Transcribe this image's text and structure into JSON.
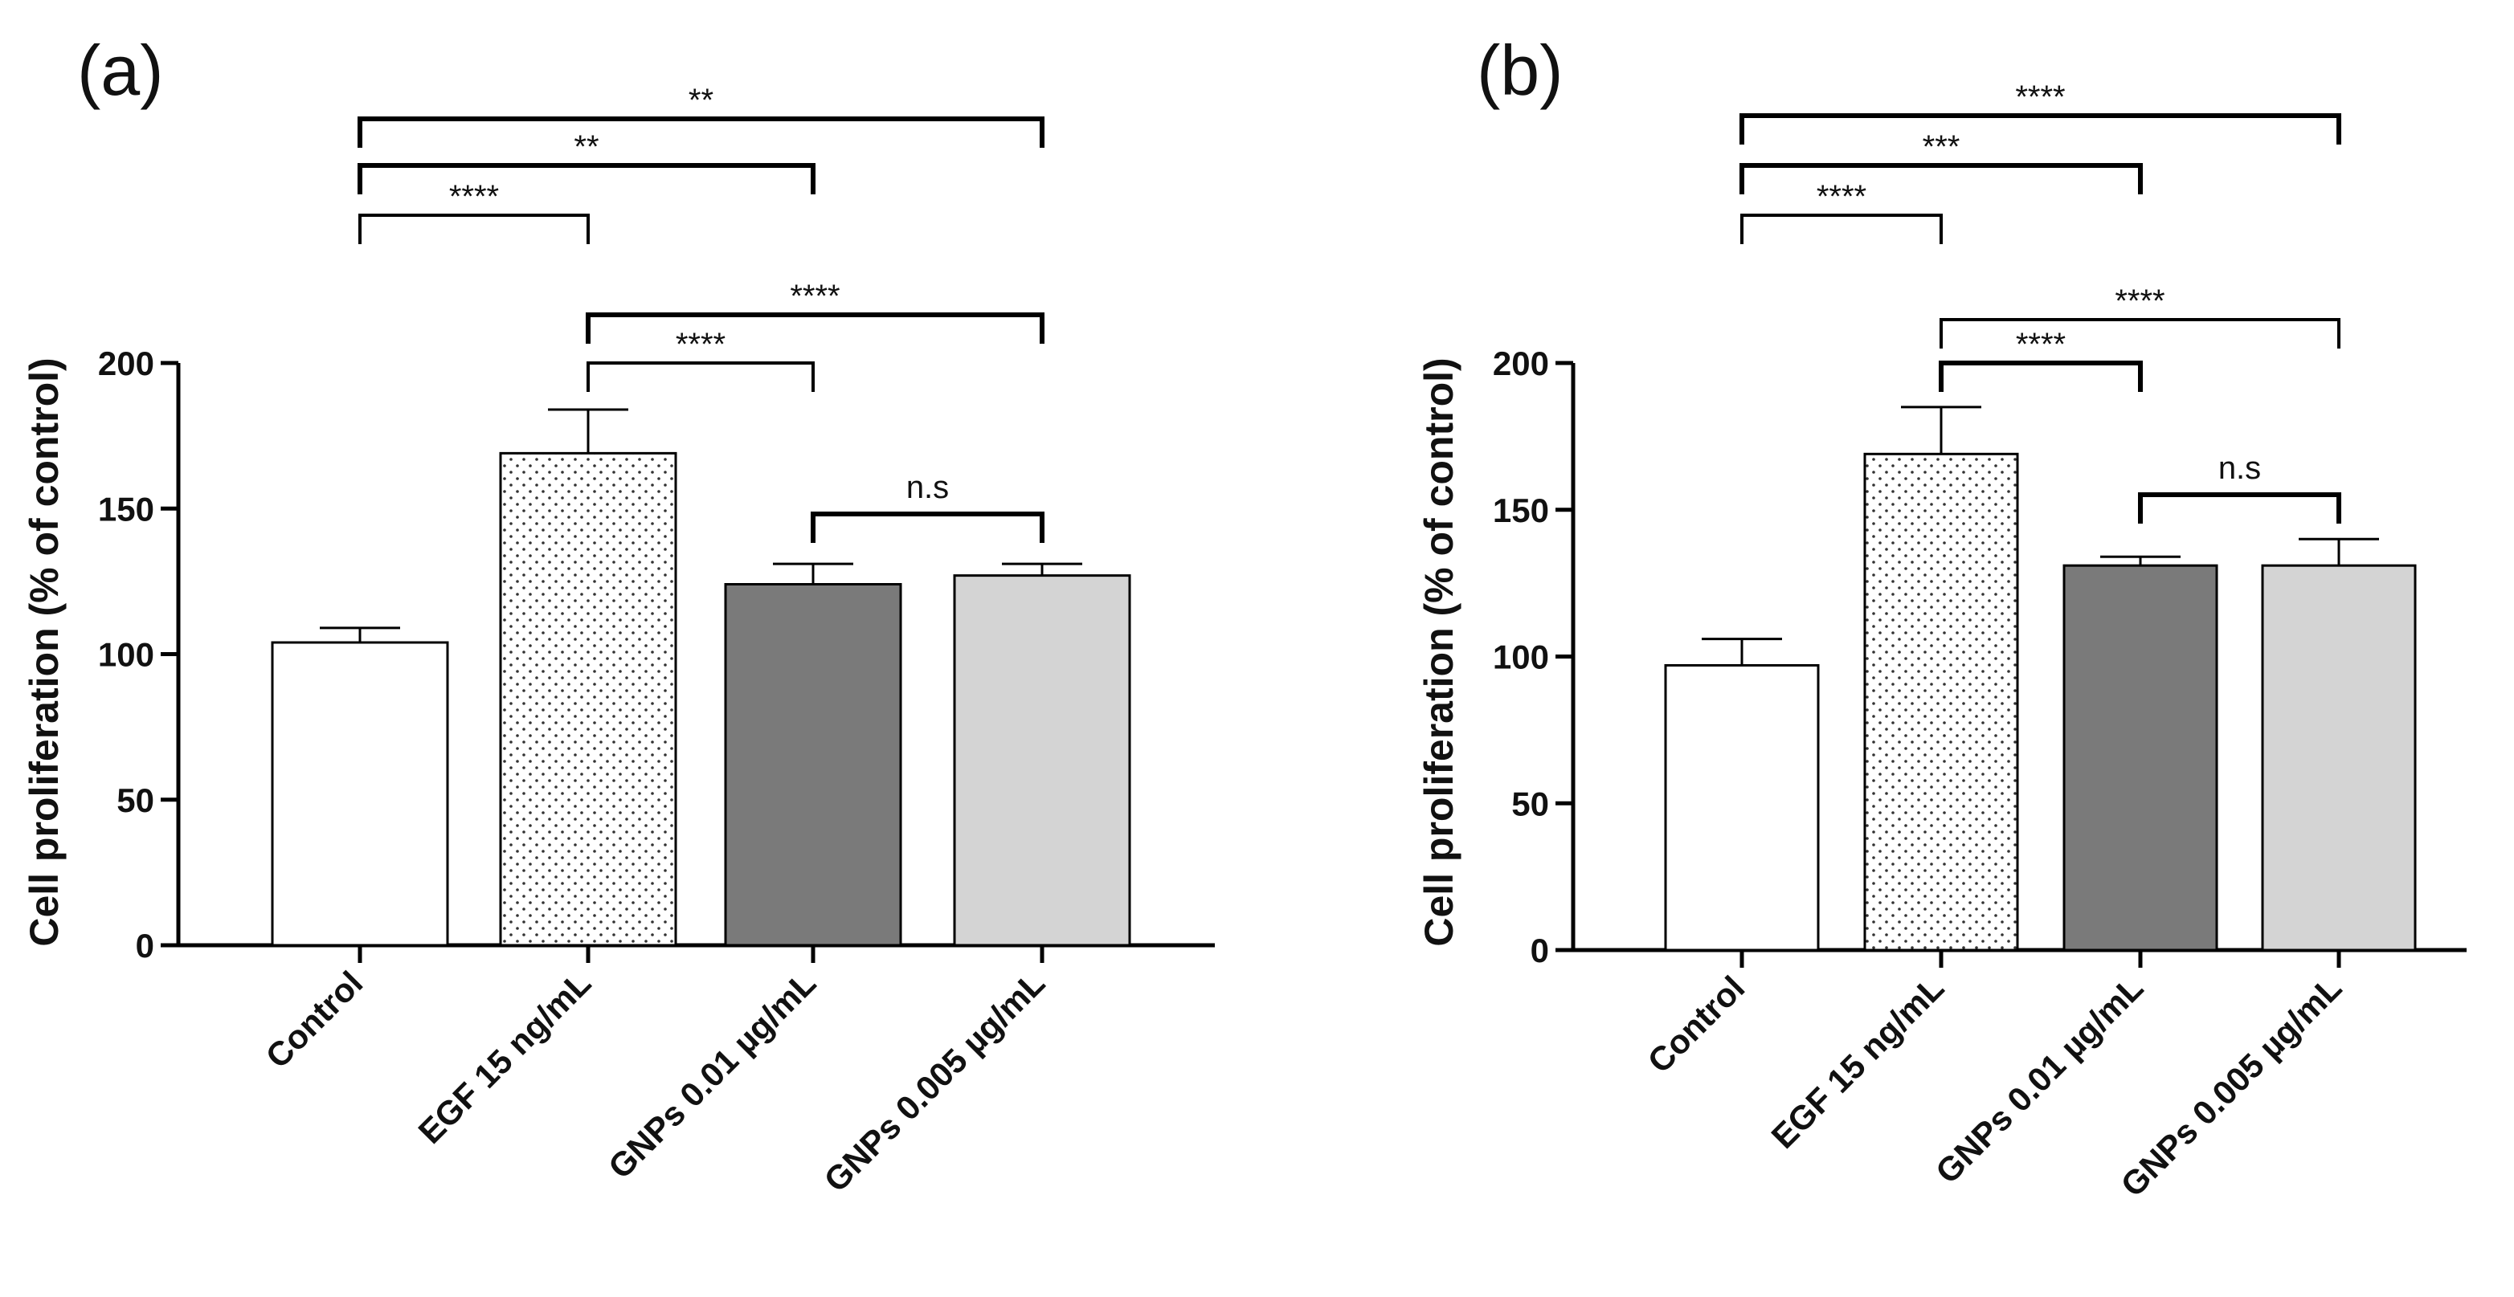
{
  "chart_data": [
    {
      "panel_label": "(a)",
      "type": "bar",
      "ylabel": "Cell proliferation (% of control)",
      "ylim": [
        0,
        200
      ],
      "yticks": [
        "0",
        "50",
        "100",
        "150",
        "200"
      ],
      "categories": [
        "Control",
        "EGF 15 ng/mL",
        "GNPs 0.01 µg/mL",
        "GNPs 0.005 µg/mL"
      ],
      "values": [
        104,
        169,
        124,
        127
      ],
      "errors": [
        5,
        15,
        7,
        4
      ],
      "fills": [
        "#ffffff",
        "dots",
        "#7a7a7a",
        "#d4d4d4"
      ],
      "comparisons": [
        {
          "from": 0,
          "to": 3,
          "label": "**"
        },
        {
          "from": 0,
          "to": 2,
          "label": "**"
        },
        {
          "from": 0,
          "to": 1,
          "label": "****"
        },
        {
          "from": 1,
          "to": 3,
          "label": "****"
        },
        {
          "from": 1,
          "to": 2,
          "label": "****"
        },
        {
          "from": 2,
          "to": 3,
          "label": "n.s"
        }
      ]
    },
    {
      "panel_label": "(b)",
      "type": "bar",
      "ylabel": "Cell proliferation (% of control)",
      "ylim": [
        0,
        200
      ],
      "yticks": [
        "0",
        "50",
        "100",
        "150",
        "200"
      ],
      "categories": [
        "Control",
        "EGF 15 ng/mL",
        "GNPs 0.01 µg/mL",
        "GNPs 0.005 µg/mL"
      ],
      "values": [
        97,
        169,
        131,
        131
      ],
      "errors": [
        9,
        16,
        3,
        9
      ],
      "fills": [
        "#ffffff",
        "dots",
        "#7a7a7a",
        "#d4d4d4"
      ],
      "comparisons": [
        {
          "from": 0,
          "to": 3,
          "label": "****"
        },
        {
          "from": 0,
          "to": 2,
          "label": "***"
        },
        {
          "from": 0,
          "to": 1,
          "label": "****"
        },
        {
          "from": 1,
          "to": 3,
          "label": "****"
        },
        {
          "from": 1,
          "to": 2,
          "label": "****"
        },
        {
          "from": 2,
          "to": 3,
          "label": "n.s"
        }
      ]
    }
  ]
}
